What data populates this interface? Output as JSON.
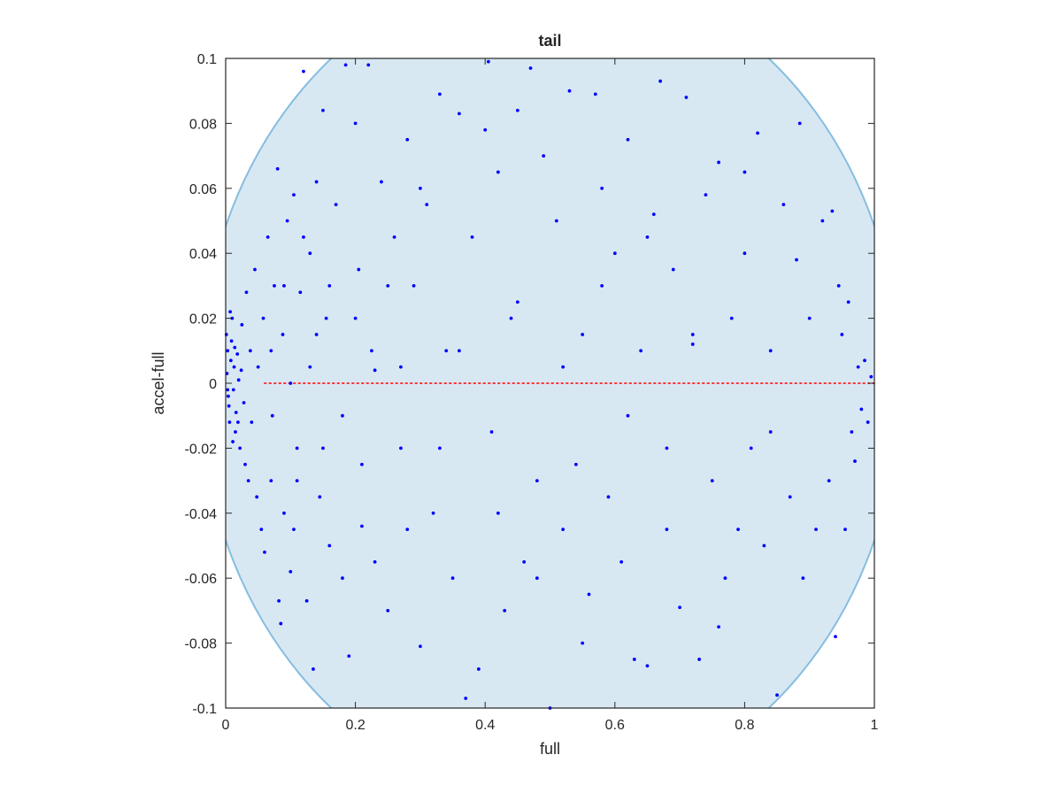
{
  "chart_data": {
    "type": "scatter",
    "title": "tail",
    "xlabel": "full",
    "ylabel": "accel-full",
    "xlim": [
      0,
      1
    ],
    "ylim": [
      -0.1,
      0.1
    ],
    "xticks": [
      0,
      0.2,
      0.4,
      0.6,
      0.8,
      1
    ],
    "xtick_labels": [
      "0",
      "0.2",
      "0.4",
      "0.6",
      "0.8",
      "1"
    ],
    "yticks": [
      -0.1,
      -0.08,
      -0.06,
      -0.04,
      -0.02,
      0,
      0.02,
      0.04,
      0.06,
      0.08,
      0.1
    ],
    "ytick_labels": [
      "-0.1",
      "-0.08",
      "-0.06",
      "-0.04",
      "-0.02",
      "0",
      "0.02",
      "0.04",
      "0.06",
      "0.08",
      "0.1"
    ],
    "grid": false,
    "colors": {
      "points": "#0000ff",
      "region_fill": "#d8e8f3",
      "region_edge": "#86bde0",
      "reference_line": "#ff3333",
      "axes": "#262626"
    },
    "reference_line": {
      "y": 0,
      "x_range": [
        0.06,
        1
      ],
      "style": "dotted"
    },
    "region": {
      "shape": "ellipse",
      "center_x": 0.5,
      "center_y": 0,
      "x_radius": 0.54,
      "y_radius": 0.128,
      "description_points": [
        [
          0.0,
          0.06
        ],
        [
          0.07,
          0.1
        ],
        [
          0.71,
          0.1
        ],
        [
          0.97,
          0.04
        ],
        [
          1.0,
          0.0
        ],
        [
          1.0,
          -0.06
        ],
        [
          0.9,
          -0.1
        ],
        [
          0.29,
          -0.1
        ],
        [
          0.0,
          -0.02
        ]
      ]
    },
    "series": [
      {
        "values": [
          [
            0.002,
            0.003
          ],
          [
            0.004,
            -0.004
          ],
          [
            0.003,
            0.01
          ],
          [
            0.006,
            -0.012
          ],
          [
            0.001,
            0.015
          ],
          [
            0.008,
            0.007
          ],
          [
            0.005,
            -0.007
          ],
          [
            0.01,
            0.02
          ],
          [
            0.012,
            -0.002
          ],
          [
            0.009,
            0.013
          ],
          [
            0.015,
            -0.015
          ],
          [
            0.013,
            0.005
          ],
          [
            0.018,
            0.009
          ],
          [
            0.016,
            -0.009
          ],
          [
            0.02,
            0.001
          ],
          [
            0.022,
            -0.02
          ],
          [
            0.025,
            0.018
          ],
          [
            0.028,
            -0.006
          ],
          [
            0.011,
            -0.018
          ],
          [
            0.007,
            0.022
          ],
          [
            0.003,
            -0.002
          ],
          [
            0.014,
            0.011
          ],
          [
            0.019,
            -0.012
          ],
          [
            0.024,
            0.004
          ],
          [
            0.03,
            -0.025
          ],
          [
            0.032,
            0.028
          ],
          [
            0.035,
            -0.03
          ],
          [
            0.038,
            0.01
          ],
          [
            0.04,
            -0.012
          ],
          [
            0.045,
            0.035
          ],
          [
            0.048,
            -0.035
          ],
          [
            0.05,
            0.005
          ],
          [
            0.055,
            -0.045
          ],
          [
            0.058,
            0.02
          ],
          [
            0.06,
            -0.052
          ],
          [
            0.065,
            0.045
          ],
          [
            0.07,
            -0.03
          ],
          [
            0.075,
            0.03
          ],
          [
            0.08,
            0.066
          ],
          [
            0.082,
            -0.067
          ],
          [
            0.085,
            -0.074
          ],
          [
            0.088,
            0.015
          ],
          [
            0.09,
            -0.04
          ],
          [
            0.095,
            0.05
          ],
          [
            0.1,
            -0.058
          ],
          [
            0.105,
            0.058
          ],
          [
            0.11,
            -0.02
          ],
          [
            0.115,
            0.028
          ],
          [
            0.12,
            0.096
          ],
          [
            0.125,
            -0.067
          ],
          [
            0.13,
            0.04
          ],
          [
            0.135,
            -0.088
          ],
          [
            0.14,
            0.062
          ],
          [
            0.145,
            -0.035
          ],
          [
            0.15,
            0.084
          ],
          [
            0.155,
            0.02
          ],
          [
            0.16,
            -0.05
          ],
          [
            0.17,
            0.055
          ],
          [
            0.18,
            -0.06
          ],
          [
            0.185,
            0.098
          ],
          [
            0.19,
            -0.084
          ],
          [
            0.2,
            0.08
          ],
          [
            0.205,
            0.035
          ],
          [
            0.21,
            -0.044
          ],
          [
            0.22,
            0.098
          ],
          [
            0.225,
            0.01
          ],
          [
            0.23,
            -0.055
          ],
          [
            0.24,
            0.062
          ],
          [
            0.25,
            -0.07
          ],
          [
            0.26,
            0.045
          ],
          [
            0.27,
            -0.02
          ],
          [
            0.28,
            0.075
          ],
          [
            0.29,
            0.03
          ],
          [
            0.3,
            -0.081
          ],
          [
            0.31,
            0.055
          ],
          [
            0.32,
            -0.04
          ],
          [
            0.33,
            0.089
          ],
          [
            0.34,
            0.01
          ],
          [
            0.35,
            -0.06
          ],
          [
            0.36,
            0.083
          ],
          [
            0.37,
            -0.097
          ],
          [
            0.38,
            0.045
          ],
          [
            0.39,
            -0.088
          ],
          [
            0.4,
            0.078
          ],
          [
            0.405,
            0.099
          ],
          [
            0.41,
            -0.015
          ],
          [
            0.42,
            0.065
          ],
          [
            0.43,
            -0.07
          ],
          [
            0.44,
            0.02
          ],
          [
            0.45,
            0.084
          ],
          [
            0.46,
            -0.055
          ],
          [
            0.47,
            0.097
          ],
          [
            0.48,
            -0.03
          ],
          [
            0.49,
            0.07
          ],
          [
            0.5,
            -0.1
          ],
          [
            0.51,
            0.05
          ],
          [
            0.52,
            -0.045
          ],
          [
            0.53,
            0.09
          ],
          [
            0.54,
            -0.025
          ],
          [
            0.55,
            0.015
          ],
          [
            0.56,
            -0.065
          ],
          [
            0.57,
            0.089
          ],
          [
            0.58,
            0.06
          ],
          [
            0.59,
            -0.035
          ],
          [
            0.6,
            0.04
          ],
          [
            0.61,
            -0.055
          ],
          [
            0.62,
            0.075
          ],
          [
            0.63,
            -0.085
          ],
          [
            0.64,
            0.01
          ],
          [
            0.65,
            -0.087
          ],
          [
            0.66,
            0.052
          ],
          [
            0.67,
            0.093
          ],
          [
            0.68,
            -0.02
          ],
          [
            0.69,
            0.035
          ],
          [
            0.7,
            -0.069
          ],
          [
            0.71,
            0.088
          ],
          [
            0.72,
            0.012
          ],
          [
            0.73,
            -0.085
          ],
          [
            0.74,
            0.058
          ],
          [
            0.75,
            -0.03
          ],
          [
            0.76,
            0.068
          ],
          [
            0.77,
            -0.06
          ],
          [
            0.78,
            0.02
          ],
          [
            0.79,
            -0.045
          ],
          [
            0.8,
            0.04
          ],
          [
            0.81,
            -0.02
          ],
          [
            0.82,
            0.077
          ],
          [
            0.83,
            -0.05
          ],
          [
            0.84,
            0.01
          ],
          [
            0.85,
            -0.096
          ],
          [
            0.86,
            0.055
          ],
          [
            0.87,
            -0.035
          ],
          [
            0.88,
            0.038
          ],
          [
            0.885,
            0.08
          ],
          [
            0.89,
            -0.06
          ],
          [
            0.9,
            0.02
          ],
          [
            0.91,
            -0.045
          ],
          [
            0.92,
            0.05
          ],
          [
            0.93,
            -0.03
          ],
          [
            0.935,
            0.053
          ],
          [
            0.94,
            -0.078
          ],
          [
            0.945,
            0.03
          ],
          [
            0.95,
            0.015
          ],
          [
            0.955,
            -0.045
          ],
          [
            0.96,
            0.025
          ],
          [
            0.965,
            -0.015
          ],
          [
            0.97,
            -0.024
          ],
          [
            0.975,
            0.005
          ],
          [
            0.98,
            -0.008
          ],
          [
            0.985,
            0.007
          ],
          [
            0.99,
            -0.012
          ],
          [
            0.995,
            0.002
          ],
          [
            0.3,
            0.06
          ],
          [
            0.33,
            -0.02
          ],
          [
            0.36,
            0.01
          ],
          [
            0.42,
            -0.04
          ],
          [
            0.45,
            0.025
          ],
          [
            0.48,
            -0.06
          ],
          [
            0.52,
            0.005
          ],
          [
            0.55,
            -0.08
          ],
          [
            0.58,
            0.03
          ],
          [
            0.62,
            -0.01
          ],
          [
            0.65,
            0.045
          ],
          [
            0.68,
            -0.045
          ],
          [
            0.72,
            0.015
          ],
          [
            0.76,
            -0.075
          ],
          [
            0.8,
            0.065
          ],
          [
            0.84,
            -0.015
          ],
          [
            0.07,
            0.01
          ],
          [
            0.072,
            -0.01
          ],
          [
            0.09,
            0.03
          ],
          [
            0.1,
            0.0
          ],
          [
            0.11,
            -0.03
          ],
          [
            0.13,
            0.005
          ],
          [
            0.14,
            0.015
          ],
          [
            0.15,
            -0.02
          ],
          [
            0.16,
            0.03
          ],
          [
            0.18,
            -0.01
          ],
          [
            0.2,
            0.02
          ],
          [
            0.21,
            -0.025
          ],
          [
            0.23,
            0.004
          ],
          [
            0.25,
            0.03
          ],
          [
            0.27,
            0.005
          ],
          [
            0.28,
            -0.045
          ],
          [
            0.12,
            0.045
          ],
          [
            0.105,
            -0.045
          ]
        ]
      }
    ]
  }
}
